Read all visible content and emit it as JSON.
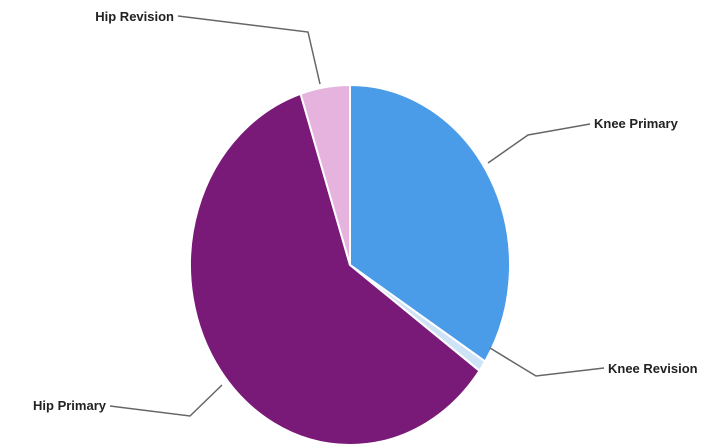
{
  "chart_data": {
    "type": "pie",
    "title": "",
    "slices": [
      {
        "label": "Knee Primary",
        "value": 34.0,
        "color": "#4a9be8"
      },
      {
        "label": "Knee Revision",
        "value": 1.0,
        "color": "#cfe3f7"
      },
      {
        "label": "Hip Primary",
        "value": 60.0,
        "color": "#7a1a78"
      },
      {
        "label": "Hip Revision",
        "value": 5.0,
        "color": "#e6b3de"
      }
    ],
    "start_angle_deg": 0,
    "direction": "clockwise",
    "legend": "none"
  }
}
